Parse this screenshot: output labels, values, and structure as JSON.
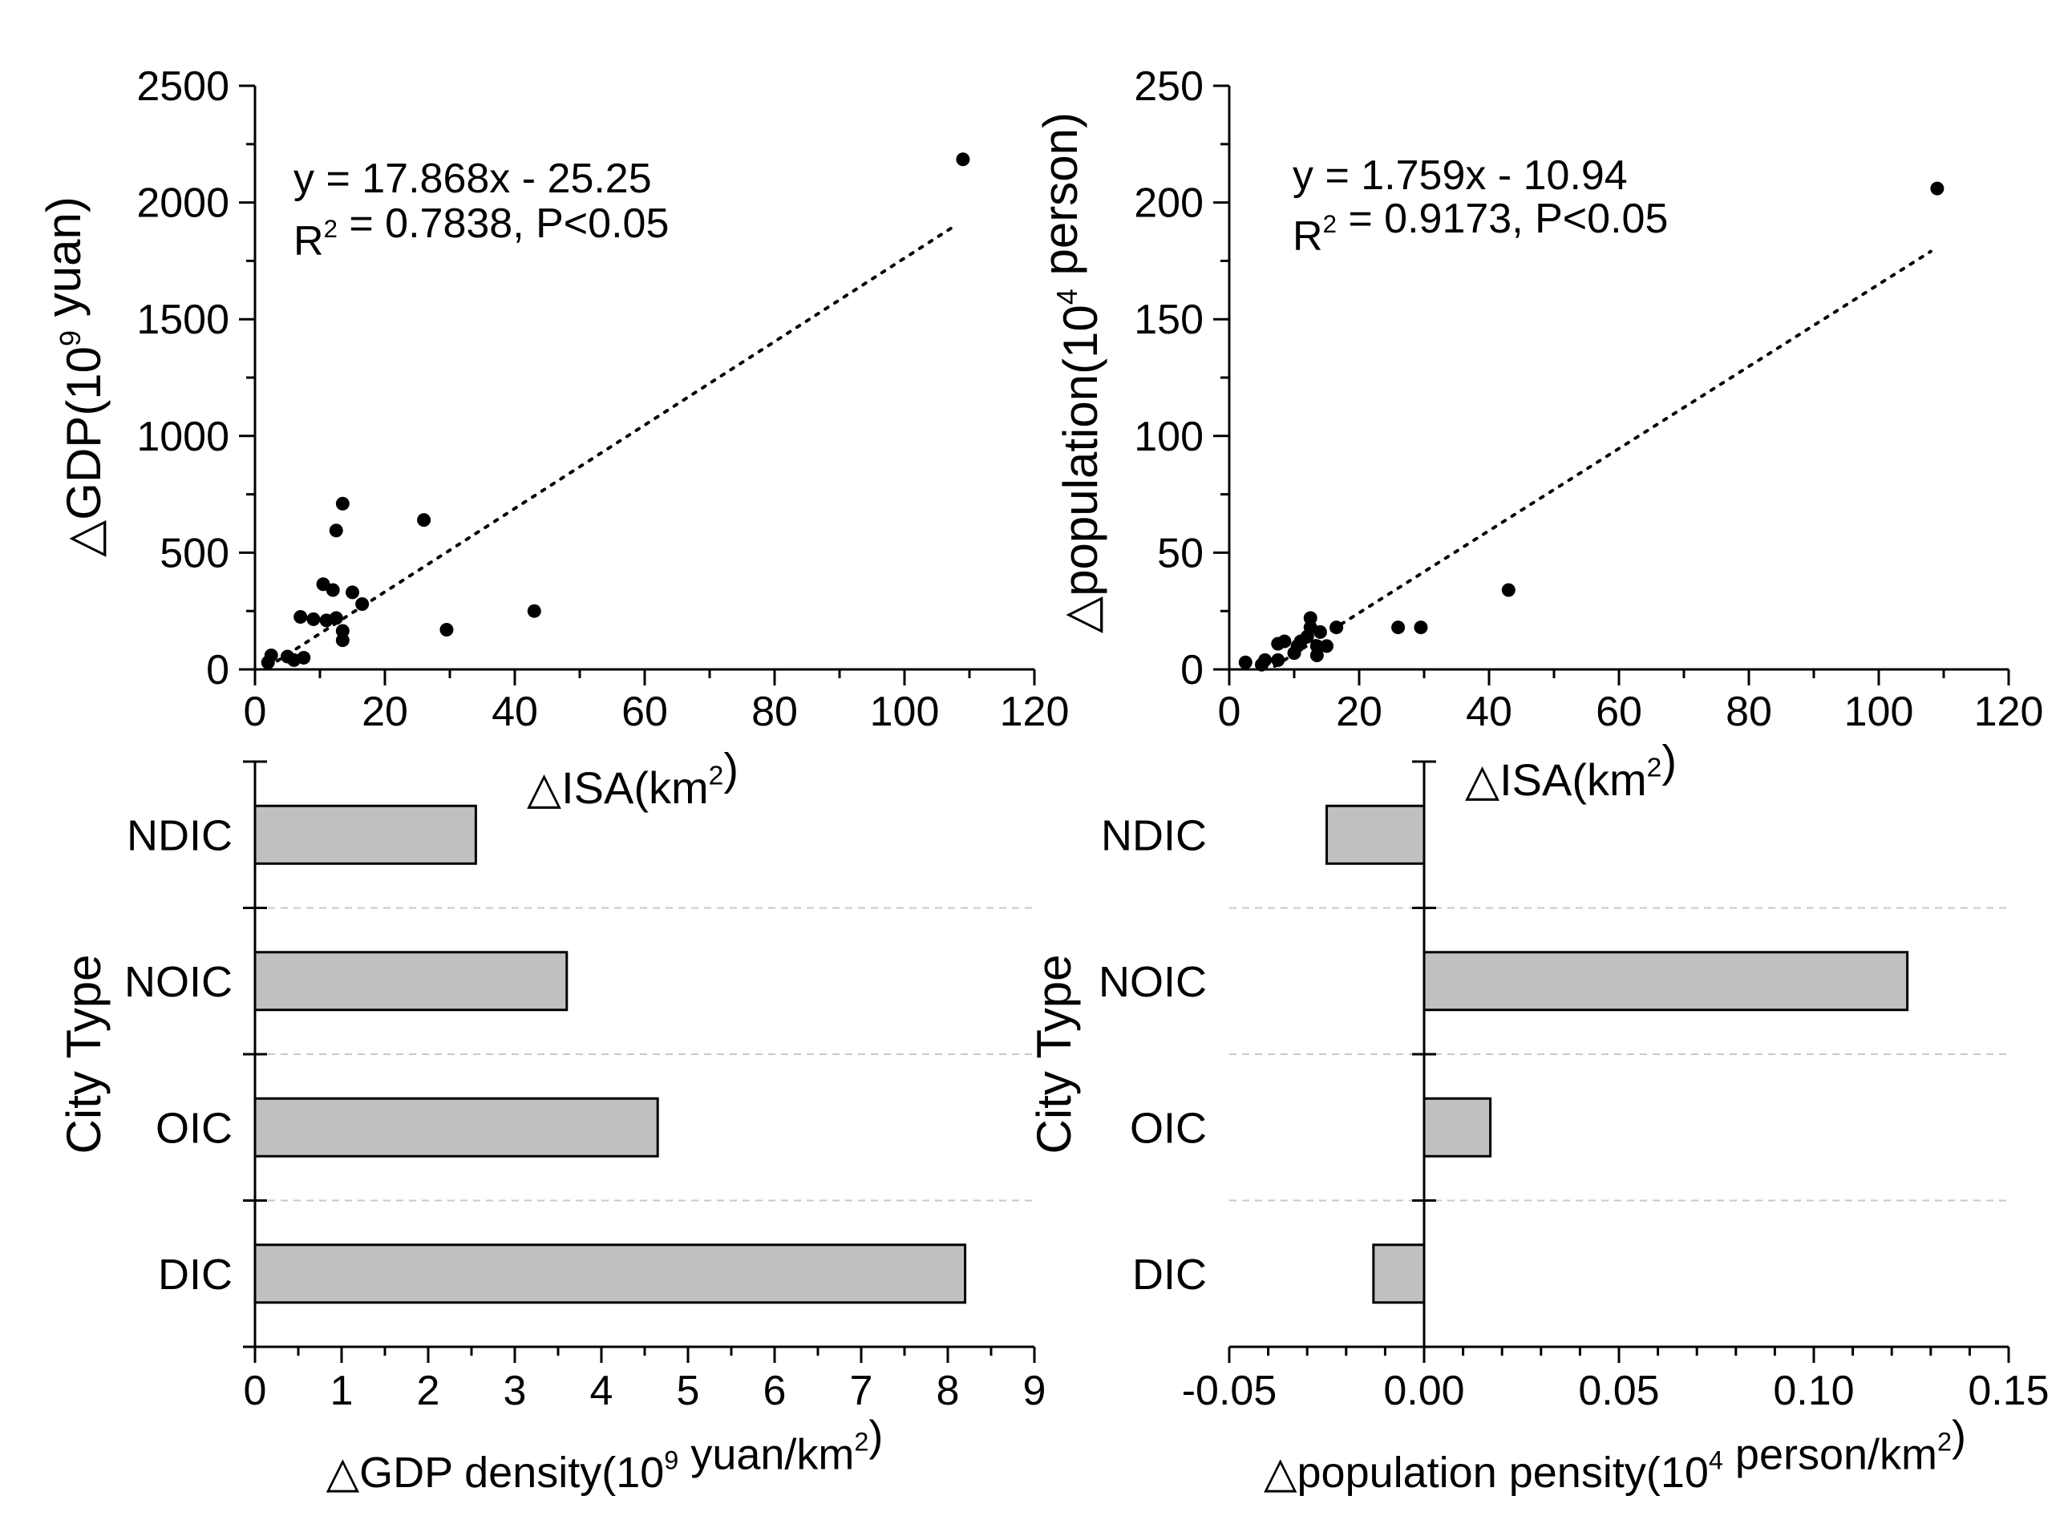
{
  "chart_data": [
    {
      "panel": "top-left",
      "type": "scatter",
      "xlabel": {
        "main": "△ISA(km",
        "sup": "2",
        "tail": ")"
      },
      "ylabel": {
        "main": "△GDP(10",
        "sup": "9",
        "tail": " yuan)"
      },
      "xlim": [
        0,
        120
      ],
      "ylim": [
        0,
        2500
      ],
      "xticks": [
        "0",
        "20",
        "40",
        "60",
        "80",
        "100",
        "120"
      ],
      "yticks": [
        "0",
        "500",
        "1000",
        "1500",
        "2000",
        "2500"
      ],
      "equation": "y = 17.868x - 25.25",
      "r2": {
        "prefix": "R",
        "sup": "2",
        "rest": " = 0.7838, P<0.05"
      },
      "trendline": {
        "slope": 17.868,
        "intercept": -25.25,
        "x_range": [
          2,
          108
        ],
        "style": "dotted"
      },
      "points": [
        [
          2,
          30
        ],
        [
          2.5,
          60
        ],
        [
          5,
          55
        ],
        [
          6,
          40
        ],
        [
          7.5,
          50
        ],
        [
          7,
          225
        ],
        [
          9,
          215
        ],
        [
          10.5,
          365
        ],
        [
          11,
          210
        ],
        [
          12,
          340
        ],
        [
          12.5,
          595
        ],
        [
          12.5,
          220
        ],
        [
          13.5,
          710
        ],
        [
          13.5,
          165
        ],
        [
          13.5,
          125
        ],
        [
          15,
          330
        ],
        [
          16.5,
          280
        ],
        [
          26,
          640
        ],
        [
          29.5,
          170
        ],
        [
          43,
          250
        ],
        [
          109,
          2185
        ]
      ]
    },
    {
      "panel": "top-right",
      "type": "scatter",
      "xlabel": {
        "main": "△ISA(km",
        "sup": "2",
        "tail": ")"
      },
      "ylabel": {
        "main": "△population(10",
        "sup": "4",
        "tail": " person)"
      },
      "xlim": [
        0,
        120
      ],
      "ylim": [
        0,
        250
      ],
      "xticks": [
        "0",
        "20",
        "40",
        "60",
        "80",
        "100",
        "120"
      ],
      "yticks": [
        "0",
        "50",
        "100",
        "150",
        "200",
        "250"
      ],
      "equation": "y = 1.759x - 10.94",
      "r2": {
        "prefix": "R",
        "sup": "2",
        "rest": " = 0.9173, P<0.05"
      },
      "trendline": {
        "slope": 1.759,
        "intercept": -10.94,
        "x_range": [
          7,
          108
        ],
        "style": "dotted"
      },
      "points": [
        [
          2.5,
          3
        ],
        [
          5,
          2
        ],
        [
          5.5,
          4
        ],
        [
          7.5,
          4
        ],
        [
          7.5,
          11
        ],
        [
          8.5,
          12
        ],
        [
          10,
          7
        ],
        [
          10.5,
          10
        ],
        [
          11,
          12
        ],
        [
          12,
          14
        ],
        [
          12.5,
          18
        ],
        [
          12.5,
          22
        ],
        [
          13.5,
          10
        ],
        [
          13.5,
          6
        ],
        [
          14,
          16
        ],
        [
          15,
          10
        ],
        [
          16.5,
          18
        ],
        [
          26,
          18
        ],
        [
          29.5,
          18
        ],
        [
          43,
          34
        ],
        [
          109,
          206
        ]
      ]
    },
    {
      "panel": "bottom-left",
      "type": "bar",
      "orientation": "horizontal",
      "categories": [
        "NDIC",
        "NOIC",
        "OIC",
        "DIC"
      ],
      "values": [
        2.55,
        3.6,
        4.65,
        8.2
      ],
      "xlim": [
        0,
        9
      ],
      "xticks": [
        "0",
        "1",
        "2",
        "3",
        "4",
        "5",
        "6",
        "7",
        "8",
        "9"
      ],
      "ylabel": "City Type",
      "xlabel": {
        "main": "△GDP density(10",
        "sup": "9",
        "mid": " yuan/km",
        "sup2": "2",
        "tail": ")"
      },
      "bar_color": "#c0c0c0"
    },
    {
      "panel": "bottom-right",
      "type": "bar",
      "orientation": "horizontal",
      "categories": [
        "NDIC",
        "NOIC",
        "OIC",
        "DIC"
      ],
      "values": [
        -0.025,
        0.124,
        0.017,
        -0.013
      ],
      "xlim": [
        -0.05,
        0.15
      ],
      "xticks": [
        "-0.05",
        "0.00",
        "0.05",
        "0.10",
        "0.15"
      ],
      "ylabel": "City Type",
      "xlabel": {
        "main": "△population pensity(10",
        "sup": "4",
        "mid": " person/km",
        "sup2": "2",
        "tail": ")"
      },
      "bar_color": "#c0c0c0"
    }
  ]
}
